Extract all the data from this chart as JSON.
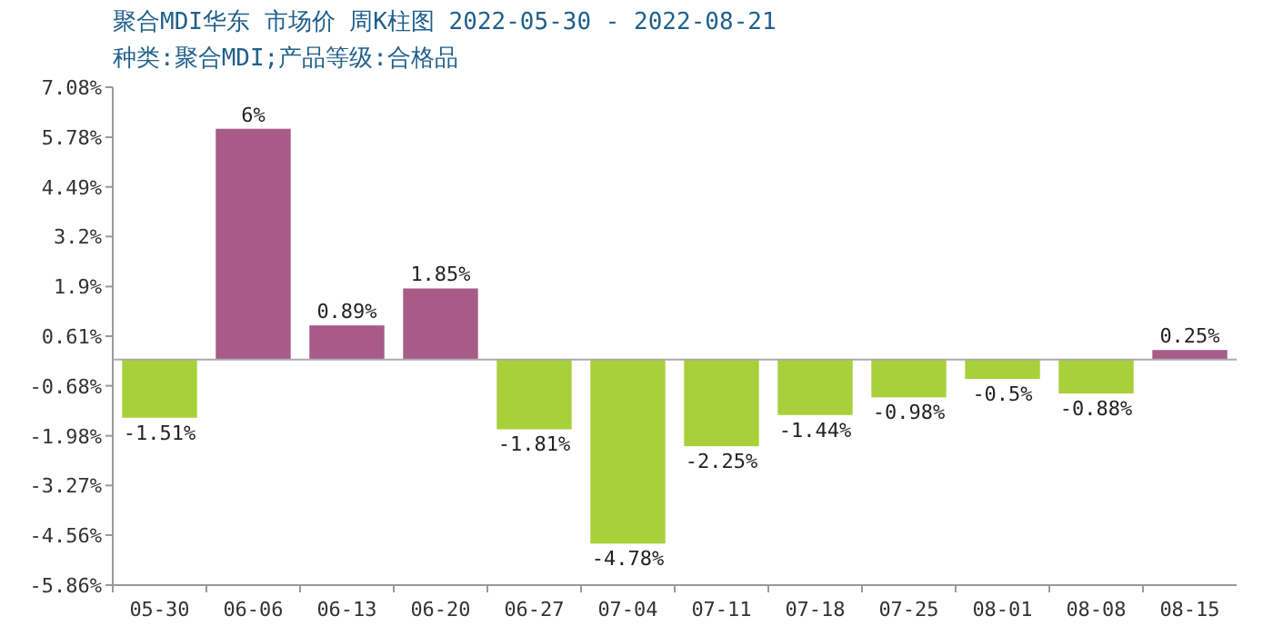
{
  "chart_data": {
    "type": "bar",
    "title": "聚合MDI华东 市场价 周K柱图 2022-05-30 - 2022-08-21",
    "subtitle": "种类:聚合MDI;产品等级:合格品",
    "categories": [
      "05-30",
      "06-06",
      "06-13",
      "06-20",
      "06-27",
      "07-04",
      "07-11",
      "07-18",
      "07-25",
      "08-01",
      "08-08",
      "08-15"
    ],
    "values": [
      -1.51,
      6,
      0.89,
      1.85,
      -1.81,
      -4.78,
      -2.25,
      -1.44,
      -0.98,
      -0.5,
      -0.88,
      0.25
    ],
    "value_labels": [
      "-1.51%",
      "6%",
      "0.89%",
      "1.85%",
      "-1.81%",
      "-4.78%",
      "-2.25%",
      "-1.44%",
      "-0.98%",
      "-0.5%",
      "-0.88%",
      "0.25%"
    ],
    "colors": [
      "#a8d03a",
      "#a85b87",
      "#a85b87",
      "#a85b87",
      "#a8d03a",
      "#a8d03a",
      "#a8d03a",
      "#a8d03a",
      "#a8d03a",
      "#a8d03a",
      "#a8d03a",
      "#a85b87"
    ],
    "ylim": [
      -5.86,
      7.08
    ],
    "yticks": [
      {
        "value": 7.08,
        "label": "7.08%"
      },
      {
        "value": 5.78,
        "label": "5.78%"
      },
      {
        "value": 4.49,
        "label": "4.49%"
      },
      {
        "value": 3.2,
        "label": "3.2%"
      },
      {
        "value": 1.9,
        "label": "1.9%"
      },
      {
        "value": 0.61,
        "label": "0.61%"
      },
      {
        "value": -0.68,
        "label": "-0.68%"
      },
      {
        "value": -1.98,
        "label": "-1.98%"
      },
      {
        "value": -3.27,
        "label": "-3.27%"
      },
      {
        "value": -4.56,
        "label": "-4.56%"
      },
      {
        "value": -5.86,
        "label": "-5.86%"
      }
    ]
  }
}
